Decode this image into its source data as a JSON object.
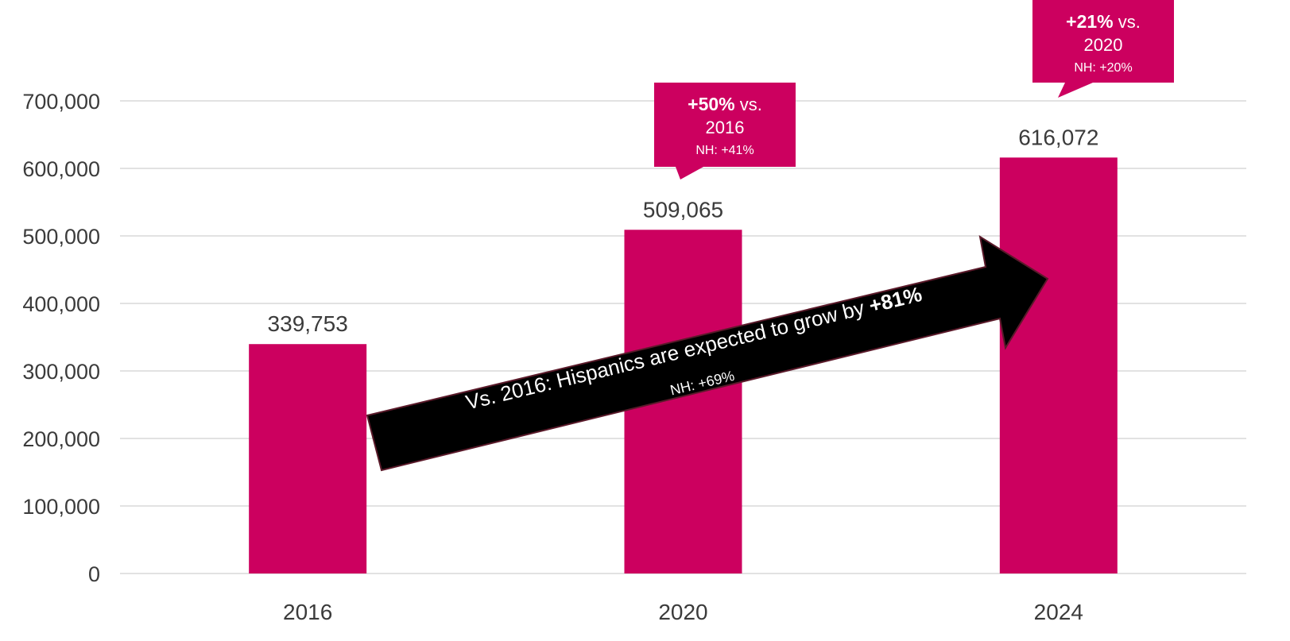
{
  "chart_data": {
    "type": "bar",
    "categories": [
      "2016",
      "2020",
      "2024"
    ],
    "values": [
      339753,
      509065,
      616072
    ],
    "value_labels": [
      "339,753",
      "509,065",
      "616,072"
    ],
    "ylim": [
      0,
      700000
    ],
    "yticks": [
      0,
      100000,
      200000,
      300000,
      400000,
      500000,
      600000,
      700000
    ],
    "ytick_labels": [
      "0",
      "100,000",
      "200,000",
      "300,000",
      "400,000",
      "500,000",
      "600,000",
      "700,000"
    ],
    "grid": true,
    "bar_color": "#cc005f",
    "callouts": [
      {
        "category": "2020",
        "bold": "+50%",
        "rest": " vs.",
        "line2": "2016",
        "line3": "NH: +41%"
      },
      {
        "category": "2024",
        "bold": "+21%",
        "rest": " vs.",
        "line2": "2020",
        "line3": "NH: +20%"
      }
    ],
    "arrow": {
      "text_main": "Vs. 2016: Hispanics  are expected to grow by ",
      "text_bold": "+81%",
      "text_sub": "NH: +69%",
      "color": "#000000"
    }
  },
  "colors": {
    "accent": "#cc005f",
    "grid": "#d9d9d9",
    "text": "#3b3b3b"
  }
}
